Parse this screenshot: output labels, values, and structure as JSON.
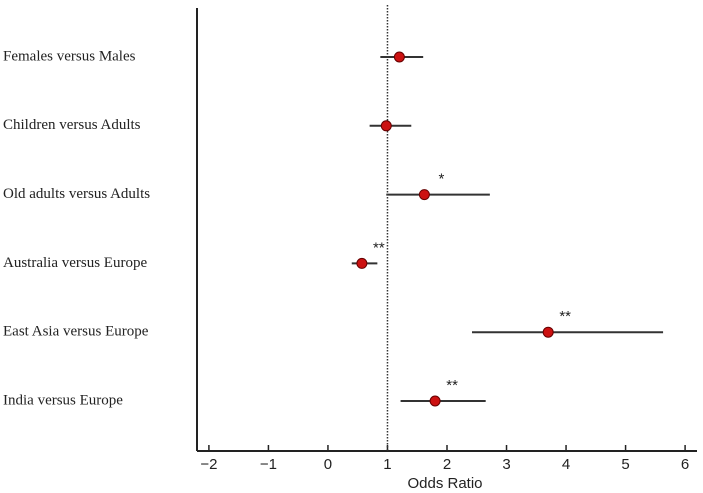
{
  "chart_data": {
    "type": "forest",
    "x_label": "Odds Ratio",
    "categories": [
      "Females versus Males",
      "Children versus Adults",
      "Old adults versus Adults",
      "Australia versus Europe",
      "East Asia versus Europe",
      "India versus Europe"
    ],
    "values": [
      1.2,
      0.98,
      1.62,
      0.57,
      3.7,
      1.8
    ],
    "lower": [
      0.88,
      0.7,
      0.98,
      0.4,
      2.42,
      1.22
    ],
    "upper": [
      1.6,
      1.4,
      2.72,
      0.83,
      5.63,
      2.65
    ],
    "annotations": [
      null,
      null,
      "*",
      "**",
      "**",
      "**"
    ],
    "color": "#cc1111",
    "reference_line": 1,
    "xlim": [
      -2.2,
      6.2
    ],
    "xticks": [
      {
        "value": -2,
        "label": "−2"
      },
      {
        "value": -1,
        "label": "−1"
      },
      0,
      1,
      2,
      3,
      4,
      5,
      6
    ]
  }
}
